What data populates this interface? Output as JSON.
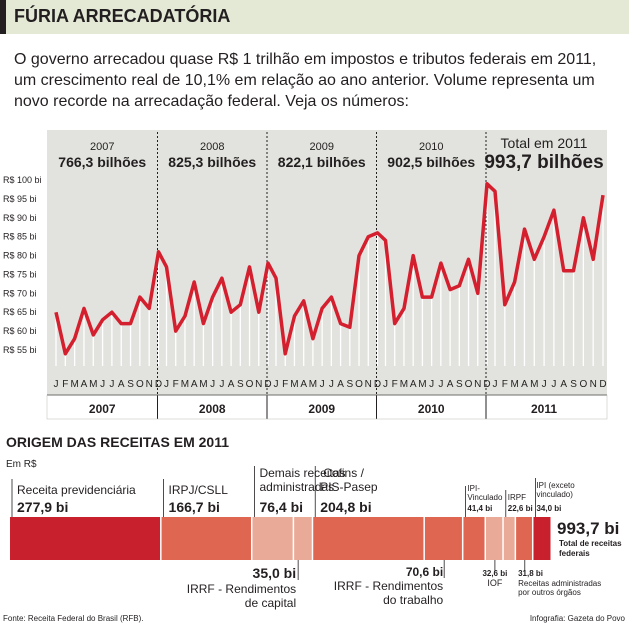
{
  "header": {
    "title": "FÚRIA ARRECADATÓRIA",
    "lead": "O governo arrecadou quase R$ 1 trilhão em impostos e tributos federais em 2011, um crescimento real de 10,1% em relação ao ano anterior. Volume representa um novo recorde na arrecadação federal. Veja os números:"
  },
  "footer": {
    "source": "Fonte: Receita Federal do Brasil (RFB).",
    "credit": "Infografia: Gazeta do Povo"
  },
  "colors": {
    "line": "#d41f2e",
    "panel": "#e2e3de",
    "bar_dark": "#c8202d",
    "bar_mid": "#df6650",
    "bar_light": "#eaaa98"
  },
  "chart_data": [
    {
      "type": "line",
      "y_tick_labels": [
        "R$ 100 bi",
        "R$ 95 bi",
        "R$ 90 bi",
        "R$ 85 bi",
        "R$ 80 bi",
        "R$ 75 bi",
        "R$ 70 bi",
        "R$ 65 bi",
        "R$ 60 bi",
        "R$ 55 bi"
      ],
      "ylim": [
        50,
        100
      ],
      "month_labels": [
        "J",
        "F",
        "M",
        "A",
        "M",
        "J",
        "J",
        "A",
        "S",
        "O",
        "N",
        "D"
      ],
      "years": [
        {
          "year": "2007",
          "total": "766,3 bilhões",
          "values": [
            65,
            54,
            58,
            66,
            59,
            63,
            65,
            62,
            62,
            69,
            66,
            81
          ]
        },
        {
          "year": "2008",
          "total": "825,3 bilhões",
          "values": [
            77,
            60,
            64,
            73,
            62,
            69,
            74,
            65,
            67,
            77,
            65,
            78
          ]
        },
        {
          "year": "2009",
          "total": "822,1 bilhões",
          "values": [
            74,
            54,
            64,
            68,
            58,
            66,
            69,
            62,
            61,
            80,
            85,
            86
          ]
        },
        {
          "year": "2010",
          "total": "902,5 bilhões",
          "values": [
            84,
            62,
            66,
            80,
            69,
            69,
            78,
            71,
            72,
            79,
            70,
            99
          ]
        },
        {
          "year": "2011",
          "total_label": "Total em 2011",
          "total": "993,7 bilhões",
          "values": [
            97,
            67,
            73,
            87,
            79,
            85,
            92,
            76,
            76,
            90,
            79,
            96
          ]
        }
      ]
    },
    {
      "type": "bar",
      "title": "ORIGEM DAS RECEITAS EM 2011",
      "unit": "Em R$",
      "segments": [
        {
          "name": "Receita previdenciária",
          "value": "277,9 bi",
          "amount": 277.9,
          "color": "#c8202d"
        },
        {
          "name": "IRPJ/CSLL",
          "value": "166,7 bi",
          "amount": 166.7,
          "color": "#df6650"
        },
        {
          "name": "Demais receitas administradas",
          "value": "76,4 bi",
          "amount": 76.4,
          "color": "#eaaa98"
        },
        {
          "name": "IRRF - Rendimentos de capital",
          "value": "35,0 bi",
          "amount": 35.0,
          "color": "#eaaa98"
        },
        {
          "name": "Cofins / PIS-Pasep",
          "value": "204,8 bi",
          "amount": 204.8,
          "color": "#df6650"
        },
        {
          "name": "IRRF - Rendimentos do trabalho",
          "value": "70,6 bi",
          "amount": 70.6,
          "color": "#df6650"
        },
        {
          "name": "IPI-Vinculado",
          "value": "41,4 bi",
          "amount": 41.4,
          "color": "#df6650"
        },
        {
          "name": "IOF",
          "value": "32,6 bi",
          "amount": 32.6,
          "color": "#eaaa98"
        },
        {
          "name": "IRPF",
          "value": "22,6 bi",
          "amount": 22.6,
          "color": "#eaaa98"
        },
        {
          "name": "Receitas administradas por outros órgãos",
          "value": "31,8 bi",
          "amount": 31.8,
          "color": "#df6650"
        },
        {
          "name": "IPI (exceto vinculado)",
          "value": "34,0 bi",
          "amount": 34.0,
          "color": "#c8202d"
        }
      ],
      "total": {
        "value": "993,7 bi",
        "label_line1": "Total de receitas",
        "label_line2": "federais"
      }
    }
  ]
}
